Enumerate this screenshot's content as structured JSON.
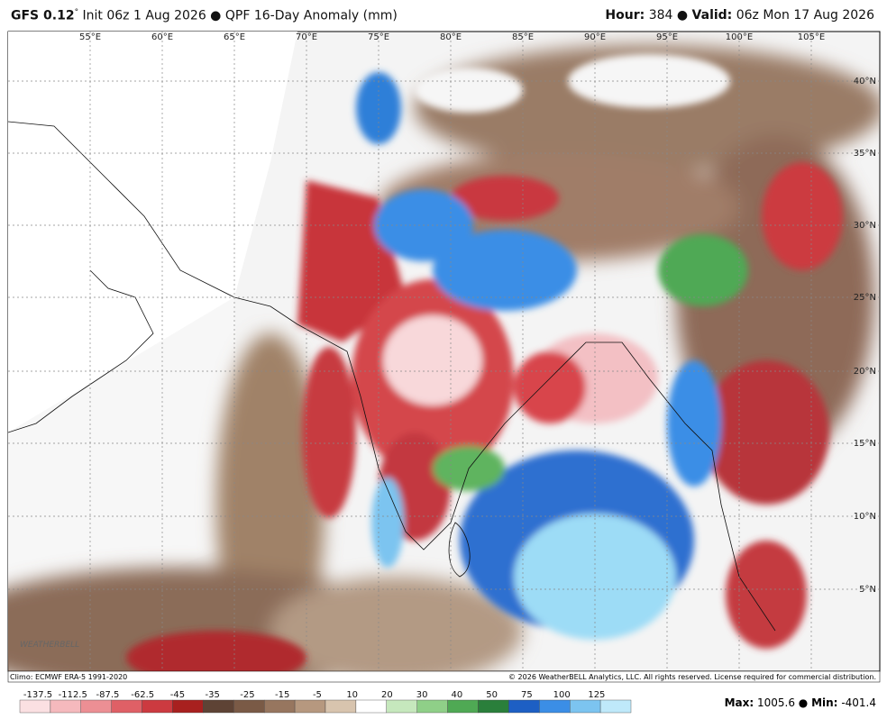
{
  "header": {
    "model": "GFS 0.12",
    "degree": "°",
    "init": "Init 06z 1 Aug 2026",
    "product": "QPF 16-Day Anomaly (mm)",
    "hour_label": "Hour:",
    "hour": "384",
    "valid_label": "Valid:",
    "valid": "06z Mon 17 Aug 2026"
  },
  "map": {
    "lon_labels": [
      "55°E",
      "60°E",
      "65°E",
      "70°E",
      "75°E",
      "80°E",
      "85°E",
      "90°E",
      "95°E",
      "100°E",
      "105°E"
    ],
    "lat_labels": [
      "40°N",
      "35°N",
      "30°N",
      "25°N",
      "20°N",
      "15°N",
      "10°N",
      "5°N"
    ],
    "logo": "WEATHERBELL"
  },
  "footer": {
    "climo": "Climo: ECMWF ERA-5 1991-2020",
    "copyright": "© 2026 WeatherBELL Analytics, LLC. All rights reserved. License required for commercial distribution."
  },
  "colorbar": {
    "labels": [
      "-137.5",
      "-112.5",
      "-87.5",
      "-62.5",
      "-45",
      "-35",
      "-25",
      "-15",
      "-5",
      "10",
      "20",
      "30",
      "40",
      "50",
      "75",
      "100",
      "125"
    ],
    "colors": [
      "#fbe0e2",
      "#f5b9bd",
      "#ec8f94",
      "#df6066",
      "#cc3a40",
      "#a8201f",
      "#5e4335",
      "#7a5a46",
      "#97765f",
      "#b6987f",
      "#d8c4ae",
      "#ffffff",
      "#c6e8bd",
      "#8fcf88",
      "#4fa954",
      "#2a7f3b",
      "#1d5fc4",
      "#3b8ee6",
      "#7cc4f0",
      "#bfe9fa"
    ]
  },
  "stats": {
    "max_label": "Max:",
    "max": "1005.6",
    "min_label": "Min:",
    "min": "-401.4"
  }
}
